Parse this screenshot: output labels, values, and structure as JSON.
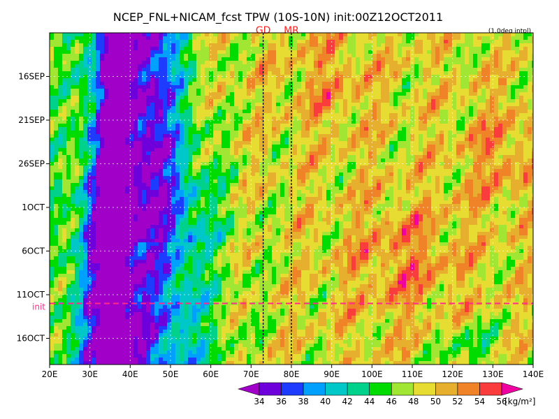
{
  "chart_data": {
    "type": "heatmap",
    "title": "NCEP_FNL+NICAM_fcst TPW (10S-10N) init:00Z12OCT2011",
    "subtitle": "(1.0deg intpl)",
    "x_ticks": [
      {
        "value": 20,
        "label": "20E"
      },
      {
        "value": 30,
        "label": "30E"
      },
      {
        "value": 40,
        "label": "40E"
      },
      {
        "value": 50,
        "label": "50E"
      },
      {
        "value": 60,
        "label": "60E"
      },
      {
        "value": 70,
        "label": "70E"
      },
      {
        "value": 80,
        "label": "80E"
      },
      {
        "value": 90,
        "label": "90E"
      },
      {
        "value": 100,
        "label": "100E"
      },
      {
        "value": 110,
        "label": "110E"
      },
      {
        "value": 120,
        "label": "120E"
      },
      {
        "value": 130,
        "label": "130E"
      },
      {
        "value": 140,
        "label": "140E"
      }
    ],
    "xlim": [
      20,
      140
    ],
    "y_ticks": [
      {
        "value": 5,
        "label": "16SEP"
      },
      {
        "value": 10,
        "label": "21SEP"
      },
      {
        "value": 15,
        "label": "26SEP"
      },
      {
        "value": 20,
        "label": "1OCT"
      },
      {
        "value": 25,
        "label": "6OCT"
      },
      {
        "value": 30,
        "label": "11OCT"
      },
      {
        "value": 35,
        "label": "16OCT"
      }
    ],
    "ylim": [
      0,
      38
    ],
    "ylim_note": "days from top edge; top ~11SEP, bottom ~19OCT",
    "init_line": {
      "label": "init",
      "value": 31,
      "color": "#ff2a8a"
    },
    "markers": [
      {
        "label": "GD",
        "value": 73
      },
      {
        "label": "MR",
        "value": 80
      }
    ],
    "colorbar": {
      "levels": [
        34,
        36,
        38,
        40,
        42,
        44,
        46,
        48,
        50,
        52,
        54,
        56
      ],
      "unit": "[kg/m²]",
      "colors": [
        "#a000c8",
        "#6e00dc",
        "#1e3cff",
        "#00a0ff",
        "#00c8c8",
        "#00d28c",
        "#00dc00",
        "#a0e632",
        "#e6dc32",
        "#e6af2d",
        "#f08228",
        "#fa3c3c",
        "#f000a0"
      ]
    },
    "grid": true
  }
}
